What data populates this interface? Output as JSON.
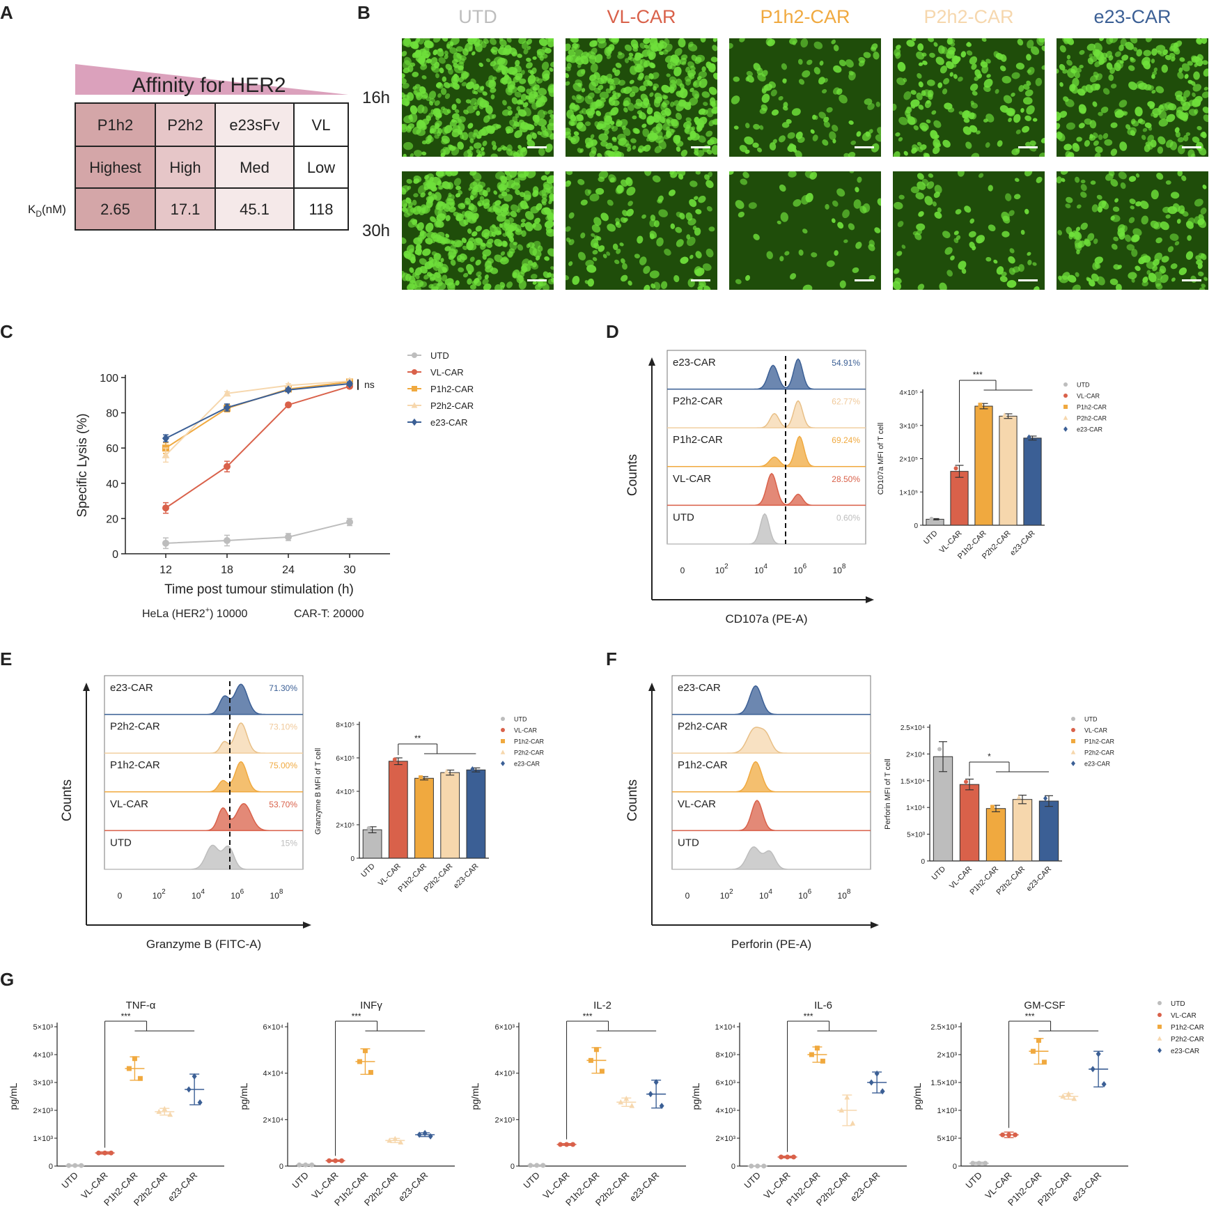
{
  "colors": {
    "UTD": "#bdbdbd",
    "VL-CAR": "#d9614a",
    "P1h2-CAR": "#f0a93f",
    "P2h2-CAR": "#f6d7ad",
    "e23-CAR": "#3b5f95",
    "affinity_wedge": "#d590b0",
    "table_dark": "#d4a6a8",
    "table_mid": "#e6c6c8",
    "table_light": "#f5e9e9",
    "micro_bg": "#1f4d0a",
    "micro_cell": "#6fe03b"
  },
  "panel_letters": [
    "A",
    "B",
    "C",
    "D",
    "E",
    "F",
    "G"
  ],
  "panel_a": {
    "wedge_title": "Affinity for HER2",
    "kd_label": "K",
    "kd_sub": "D",
    "kd_unit": "(nM)",
    "headers": [
      "P1h2",
      "P2h2",
      "e23sFv",
      "VL"
    ],
    "affinity": [
      "Highest",
      "High",
      "Med",
      "Low"
    ],
    "kd_values": [
      "2.65",
      "17.1",
      "45.1",
      "118"
    ]
  },
  "panel_b": {
    "columns": [
      "UTD",
      "VL-CAR",
      "P1h2-CAR",
      "P2h2-CAR",
      "e23-CAR"
    ],
    "rows": [
      "16h",
      "30h"
    ],
    "cell_density_16h": [
      1.0,
      0.95,
      0.25,
      0.4,
      0.55
    ],
    "cell_density_30h": [
      1.0,
      0.3,
      0.12,
      0.18,
      0.35
    ]
  },
  "chart_data": [
    {
      "panel": "C",
      "type": "line",
      "xlabel": "Time post tumour stimulation (h)",
      "ylabel": "Specific Lysis (%)",
      "x": [
        12,
        18,
        24,
        30
      ],
      "ylim": [
        0,
        100
      ],
      "yticks": [
        0,
        20,
        40,
        60,
        80,
        100
      ],
      "series": [
        {
          "name": "UTD",
          "values": [
            6,
            7.5,
            9.5,
            18
          ],
          "err": [
            3,
            3,
            2,
            2
          ],
          "marker": "circle"
        },
        {
          "name": "VL-CAR",
          "values": [
            26,
            49.5,
            84.5,
            95
          ],
          "err": [
            3,
            3,
            1,
            1
          ],
          "marker": "circle"
        },
        {
          "name": "P1h2-CAR",
          "values": [
            60,
            82.5,
            93.5,
            97.5
          ],
          "err": [
            3,
            2,
            1,
            1
          ],
          "marker": "square"
        },
        {
          "name": "P2h2-CAR",
          "values": [
            56,
            91,
            95.5,
            98
          ],
          "err": [
            4,
            1,
            1,
            1
          ],
          "marker": "triangle"
        },
        {
          "name": "e23-CAR",
          "values": [
            65.5,
            83,
            93,
            96.5
          ],
          "err": [
            2,
            2,
            1,
            1
          ],
          "marker": "diamond"
        }
      ],
      "annotation": "ns",
      "footnote_left": "HeLa (HER2",
      "footnote_sup": "+",
      "footnote_mid": ")   10000",
      "footnote_right": "CAR-T: 20000"
    },
    {
      "panel": "D-hist",
      "type": "area",
      "xlabel": "CD107a (PE-A)",
      "ylabel": "Counts",
      "tracks": [
        "e23-CAR",
        "P2h2-CAR",
        "P1h2-CAR",
        "VL-CAR",
        "UTD"
      ],
      "percents": [
        "54.91%",
        "62.77%",
        "69.24%",
        "28.50%",
        "0.60%"
      ],
      "xticks": [
        "0",
        "10",
        "10",
        "10",
        "10"
      ],
      "xtick_exp": [
        "",
        "2",
        "4",
        "6",
        "8"
      ]
    },
    {
      "panel": "D-bar",
      "type": "bar",
      "ylabel": "CD107a MFI of T cell",
      "categories": [
        "UTD",
        "VL-CAR",
        "P1h2-CAR",
        "P2h2-CAR",
        "e23-CAR"
      ],
      "values": [
        18000,
        162000,
        358000,
        328000,
        262000
      ],
      "err": [
        2000,
        18000,
        8000,
        7000,
        6000
      ],
      "ylim": [
        0,
        400000
      ],
      "ytick_labels": [
        "0",
        "1×10⁵",
        "2×10⁵",
        "3×10⁵",
        "4×10⁵"
      ],
      "sig": "***"
    },
    {
      "panel": "E-hist",
      "type": "area",
      "xlabel": "Granzyme B (FITC-A)",
      "ylabel": "Counts",
      "tracks": [
        "e23-CAR",
        "P2h2-CAR",
        "P1h2-CAR",
        "VL-CAR",
        "UTD"
      ],
      "percents": [
        "71.30%",
        "73.10%",
        "75.00%",
        "53.70%",
        "15%"
      ],
      "xticks": [
        "0",
        "10",
        "10",
        "10",
        "10"
      ],
      "xtick_exp": [
        "",
        "2",
        "4",
        "6",
        "8"
      ]
    },
    {
      "panel": "E-bar",
      "type": "bar",
      "ylabel": "Granzyme B MFI of T cell",
      "categories": [
        "UTD",
        "VL-CAR",
        "P1h2-CAR",
        "P2h2-CAR",
        "e23-CAR"
      ],
      "values": [
        170000,
        580000,
        478000,
        512000,
        528000
      ],
      "err": [
        18000,
        20000,
        10000,
        15000,
        12000
      ],
      "ylim": [
        0,
        800000
      ],
      "ytick_labels": [
        "0",
        "2×10⁵",
        "4×10⁵",
        "6×10⁵",
        "8×10⁵"
      ],
      "sig": "**"
    },
    {
      "panel": "F-hist",
      "type": "area",
      "xlabel": "Perforin (PE-A)",
      "ylabel": "Counts",
      "tracks": [
        "e23-CAR",
        "P2h2-CAR",
        "P1h2-CAR",
        "VL-CAR",
        "UTD"
      ],
      "percents": [
        "",
        "",
        "",
        "",
        ""
      ],
      "xticks": [
        "0",
        "10",
        "10",
        "10",
        "10"
      ],
      "xtick_exp": [
        "",
        "2",
        "4",
        "6",
        "8"
      ]
    },
    {
      "panel": "F-bar",
      "type": "bar",
      "ylabel": "Perforin MFI of T cell",
      "categories": [
        "UTD",
        "VL-CAR",
        "P1h2-CAR",
        "P2h2-CAR",
        "e23-CAR"
      ],
      "values": [
        19500,
        14300,
        9800,
        11500,
        11200
      ],
      "err": [
        2800,
        1000,
        600,
        800,
        1000
      ],
      "ylim": [
        0,
        25000
      ],
      "ytick_labels": [
        "0",
        "5×10³",
        "1×10⁴",
        "1.5×10⁴",
        "2×10⁴",
        "2.5×10⁴"
      ],
      "sig": "*"
    },
    {
      "panel": "G-TNF",
      "type": "scatter",
      "title": "TNF-α",
      "ylabel": "pg/mL",
      "categories": [
        "UTD",
        "VL-CAR",
        "P1h2-CAR",
        "P2h2-CAR",
        "e23-CAR"
      ],
      "means": [
        20,
        470,
        3500,
        1950,
        2750
      ],
      "sd": [
        20,
        40,
        420,
        120,
        550
      ],
      "ylim": [
        0,
        5000
      ],
      "ytick_labels": [
        "0",
        "1×10³",
        "2×10³",
        "3×10³",
        "4×10³",
        "5×10³"
      ],
      "sig": "***"
    },
    {
      "panel": "G-INF",
      "type": "scatter",
      "title": "INFγ",
      "ylabel": "pg/mL",
      "categories": [
        "UTD",
        "VL-CAR",
        "P1h2-CAR",
        "P2h2-CAR",
        "e23-CAR"
      ],
      "means": [
        500,
        2300,
        45000,
        11000,
        13500
      ],
      "sd": [
        300,
        300,
        5500,
        900,
        800
      ],
      "ylim": [
        0,
        60000
      ],
      "ytick_labels": [
        "0",
        "2×10⁴",
        "4×10⁴",
        "6×10⁴"
      ],
      "sig": "***"
    },
    {
      "panel": "G-IL2",
      "type": "scatter",
      "title": "IL-2",
      "ylabel": "pg/mL",
      "categories": [
        "UTD",
        "VL-CAR",
        "P1h2-CAR",
        "P2h2-CAR",
        "e23-CAR"
      ],
      "means": [
        30,
        930,
        4550,
        2750,
        3100
      ],
      "sd": [
        20,
        40,
        550,
        180,
        600
      ],
      "ylim": [
        0,
        6000
      ],
      "ytick_labels": [
        "0",
        "2×10³",
        "4×10³",
        "6×10³"
      ],
      "sig": "***"
    },
    {
      "panel": "G-IL6",
      "type": "scatter",
      "title": "IL-6",
      "ylabel": "pg/mL",
      "categories": [
        "UTD",
        "VL-CAR",
        "P1h2-CAR",
        "P2h2-CAR",
        "e23-CAR"
      ],
      "means": [
        0,
        650,
        8000,
        4000,
        6000
      ],
      "sd": [
        20,
        60,
        550,
        1100,
        750
      ],
      "ylim": [
        0,
        10000
      ],
      "ytick_labels": [
        "0",
        "2×10³",
        "4×10³",
        "6×10³",
        "8×10³",
        "1×10⁴"
      ],
      "sig": "***"
    },
    {
      "panel": "G-GMCSF",
      "type": "scatter",
      "title": "GM-CSF",
      "ylabel": "pg/mL",
      "categories": [
        "UTD",
        "VL-CAR",
        "P1h2-CAR",
        "P2h2-CAR",
        "e23-CAR"
      ],
      "means": [
        50,
        560,
        2060,
        1250,
        1740
      ],
      "sd": [
        20,
        50,
        230,
        50,
        320
      ],
      "ylim": [
        0,
        2500
      ],
      "ytick_labels": [
        "0",
        "5×10²",
        "1×10³",
        "1.5×10³",
        "2×10³",
        "2.5×10³"
      ],
      "sig": "***"
    }
  ]
}
